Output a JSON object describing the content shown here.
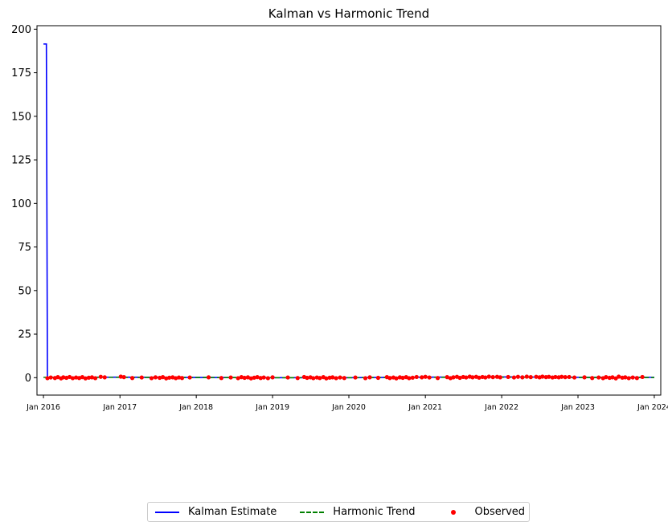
{
  "chart_data": {
    "type": "line",
    "title": "Kalman vs Harmonic Trend",
    "xlabel": "",
    "ylabel": "",
    "x_axis_type": "date",
    "xlim": [
      "2015-12-01",
      "2024-02-01"
    ],
    "ylim": [
      -10,
      202
    ],
    "grid": false,
    "legend_position": "lower-center",
    "x_ticks": [
      {
        "date": "2016-01-01",
        "label": "Jan 2016"
      },
      {
        "date": "2017-01-01",
        "label": "Jan 2017"
      },
      {
        "date": "2018-01-01",
        "label": "Jan 2018"
      },
      {
        "date": "2019-01-01",
        "label": "Jan 2019"
      },
      {
        "date": "2020-01-01",
        "label": "Jan 2020"
      },
      {
        "date": "2021-01-01",
        "label": "Jan 2021"
      },
      {
        "date": "2022-01-01",
        "label": "Jan 2022"
      },
      {
        "date": "2023-01-01",
        "label": "Jan 2023"
      },
      {
        "date": "2024-01-01",
        "label": "Jan 2024"
      }
    ],
    "y_ticks": [
      0,
      25,
      50,
      75,
      100,
      125,
      150,
      175,
      200
    ],
    "series": [
      {
        "name": "Kalman Estimate",
        "style": "solid",
        "color": "#0000ff",
        "points": [
          [
            "2016-01-01",
            191.5
          ],
          [
            "2016-01-15",
            191.5
          ],
          [
            "2016-01-15",
            191.0
          ],
          [
            "2016-01-20",
            0.3
          ],
          [
            "2016-06-01",
            0.2
          ],
          [
            "2017-01-01",
            0.3
          ],
          [
            "2018-01-01",
            0.1
          ],
          [
            "2019-01-01",
            0.0
          ],
          [
            "2020-01-01",
            0.0
          ],
          [
            "2021-01-01",
            0.3
          ],
          [
            "2022-01-01",
            0.4
          ],
          [
            "2023-01-01",
            0.2
          ],
          [
            "2024-01-01",
            0.2
          ]
        ]
      },
      {
        "name": "Harmonic Trend",
        "style": "dashed",
        "color": "#008000",
        "points": [
          [
            "2016-01-01",
            0.2
          ],
          [
            "2017-01-01",
            0.2
          ],
          [
            "2018-01-01",
            0.1
          ],
          [
            "2019-01-01",
            0.0
          ],
          [
            "2020-01-01",
            0.0
          ],
          [
            "2021-01-01",
            0.2
          ],
          [
            "2022-01-01",
            0.3
          ],
          [
            "2023-01-01",
            0.1
          ],
          [
            "2024-01-01",
            0.1
          ]
        ]
      },
      {
        "name": "Observed",
        "style": "scatter",
        "color": "#ff0000",
        "points": [
          [
            "2016-01-20",
            -0.3
          ],
          [
            "2016-02-05",
            0.1
          ],
          [
            "2016-02-25",
            -0.2
          ],
          [
            "2016-03-10",
            0.3
          ],
          [
            "2016-03-25",
            -0.4
          ],
          [
            "2016-04-05",
            0.2
          ],
          [
            "2016-04-20",
            -0.1
          ],
          [
            "2016-05-05",
            0.4
          ],
          [
            "2016-05-20",
            -0.3
          ],
          [
            "2016-06-05",
            0.1
          ],
          [
            "2016-06-20",
            -0.2
          ],
          [
            "2016-07-05",
            0.3
          ],
          [
            "2016-07-20",
            -0.4
          ],
          [
            "2016-08-05",
            0.0
          ],
          [
            "2016-08-20",
            0.2
          ],
          [
            "2016-09-05",
            -0.3
          ],
          [
            "2016-10-01",
            0.5
          ],
          [
            "2016-10-20",
            0.2
          ],
          [
            "2017-01-05",
            0.6
          ],
          [
            "2017-01-20",
            0.3
          ],
          [
            "2017-03-01",
            -0.2
          ],
          [
            "2017-04-15",
            0.1
          ],
          [
            "2017-06-01",
            -0.3
          ],
          [
            "2017-06-20",
            0.2
          ],
          [
            "2017-07-10",
            -0.1
          ],
          [
            "2017-07-25",
            0.3
          ],
          [
            "2017-08-10",
            -0.4
          ],
          [
            "2017-08-25",
            0.0
          ],
          [
            "2017-09-10",
            0.2
          ],
          [
            "2017-09-25",
            -0.3
          ],
          [
            "2017-10-10",
            0.1
          ],
          [
            "2017-10-25",
            -0.2
          ],
          [
            "2017-12-01",
            0.1
          ],
          [
            "2018-03-01",
            0.2
          ],
          [
            "2018-05-01",
            -0.2
          ],
          [
            "2018-06-15",
            0.1
          ],
          [
            "2018-07-20",
            -0.3
          ],
          [
            "2018-08-05",
            0.3
          ],
          [
            "2018-08-20",
            -0.1
          ],
          [
            "2018-09-05",
            0.2
          ],
          [
            "2018-09-20",
            -0.4
          ],
          [
            "2018-10-05",
            0.0
          ],
          [
            "2018-10-20",
            0.3
          ],
          [
            "2018-11-05",
            -0.2
          ],
          [
            "2018-11-20",
            0.1
          ],
          [
            "2018-12-10",
            -0.3
          ],
          [
            "2019-01-01",
            0.2
          ],
          [
            "2019-03-15",
            0.1
          ],
          [
            "2019-05-01",
            -0.2
          ],
          [
            "2019-06-01",
            0.4
          ],
          [
            "2019-06-15",
            -0.1
          ],
          [
            "2019-07-01",
            0.2
          ],
          [
            "2019-07-15",
            -0.3
          ],
          [
            "2019-08-01",
            0.1
          ],
          [
            "2019-08-15",
            -0.2
          ],
          [
            "2019-09-01",
            0.3
          ],
          [
            "2019-09-15",
            -0.4
          ],
          [
            "2019-10-01",
            0.0
          ],
          [
            "2019-10-15",
            0.2
          ],
          [
            "2019-11-01",
            -0.3
          ],
          [
            "2019-11-20",
            0.1
          ],
          [
            "2019-12-10",
            -0.2
          ],
          [
            "2020-02-01",
            0.1
          ],
          [
            "2020-03-20",
            -0.3
          ],
          [
            "2020-04-10",
            0.2
          ],
          [
            "2020-05-20",
            -0.1
          ],
          [
            "2020-07-01",
            0.3
          ],
          [
            "2020-07-15",
            -0.2
          ],
          [
            "2020-08-01",
            0.1
          ],
          [
            "2020-08-15",
            -0.4
          ],
          [
            "2020-09-01",
            0.2
          ],
          [
            "2020-09-15",
            -0.1
          ],
          [
            "2020-10-01",
            0.3
          ],
          [
            "2020-10-15",
            -0.3
          ],
          [
            "2020-11-01",
            0.0
          ],
          [
            "2020-11-20",
            0.4
          ],
          [
            "2020-12-15",
            0.2
          ],
          [
            "2021-01-01",
            0.5
          ],
          [
            "2021-01-20",
            0.1
          ],
          [
            "2021-03-01",
            -0.2
          ],
          [
            "2021-04-15",
            0.3
          ],
          [
            "2021-05-01",
            -0.3
          ],
          [
            "2021-05-15",
            0.2
          ],
          [
            "2021-06-01",
            0.5
          ],
          [
            "2021-06-15",
            -0.1
          ],
          [
            "2021-07-01",
            0.4
          ],
          [
            "2021-07-15",
            0.1
          ],
          [
            "2021-08-01",
            0.6
          ],
          [
            "2021-08-15",
            0.2
          ],
          [
            "2021-09-01",
            0.5
          ],
          [
            "2021-09-15",
            0.0
          ],
          [
            "2021-10-01",
            0.4
          ],
          [
            "2021-10-15",
            0.1
          ],
          [
            "2021-11-01",
            0.6
          ],
          [
            "2021-11-20",
            0.3
          ],
          [
            "2021-12-10",
            0.5
          ],
          [
            "2021-12-25",
            0.2
          ],
          [
            "2022-02-01",
            0.4
          ],
          [
            "2022-03-01",
            0.1
          ],
          [
            "2022-03-20",
            0.5
          ],
          [
            "2022-04-10",
            0.2
          ],
          [
            "2022-05-01",
            0.6
          ],
          [
            "2022-05-20",
            0.3
          ],
          [
            "2022-06-15",
            0.5
          ],
          [
            "2022-07-01",
            0.2
          ],
          [
            "2022-07-15",
            0.6
          ],
          [
            "2022-08-01",
            0.3
          ],
          [
            "2022-08-15",
            0.5
          ],
          [
            "2022-09-01",
            0.1
          ],
          [
            "2022-09-15",
            0.4
          ],
          [
            "2022-10-01",
            0.2
          ],
          [
            "2022-10-15",
            0.5
          ],
          [
            "2022-11-01",
            0.3
          ],
          [
            "2022-11-20",
            0.4
          ],
          [
            "2022-12-15",
            0.1
          ],
          [
            "2023-02-01",
            0.2
          ],
          [
            "2023-03-10",
            -0.2
          ],
          [
            "2023-04-10",
            0.1
          ],
          [
            "2023-05-01",
            -0.3
          ],
          [
            "2023-05-15",
            0.3
          ],
          [
            "2023-06-01",
            -0.1
          ],
          [
            "2023-06-15",
            0.2
          ],
          [
            "2023-07-01",
            -0.4
          ],
          [
            "2023-07-15",
            0.6
          ],
          [
            "2023-08-01",
            0.0
          ],
          [
            "2023-08-15",
            0.2
          ],
          [
            "2023-09-01",
            -0.3
          ],
          [
            "2023-09-20",
            0.1
          ],
          [
            "2023-10-10",
            -0.2
          ],
          [
            "2023-11-05",
            0.4
          ]
        ]
      }
    ]
  }
}
